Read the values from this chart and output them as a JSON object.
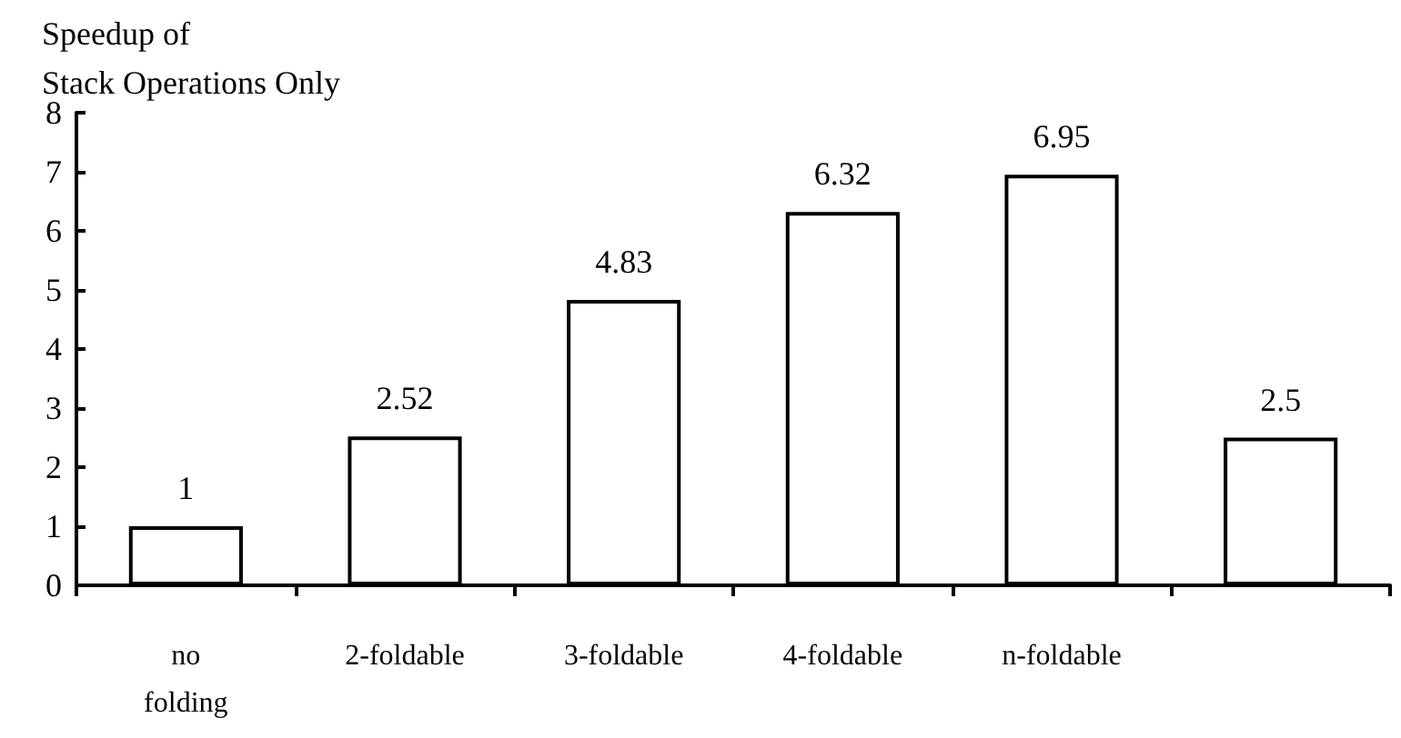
{
  "chart_data": {
    "type": "bar",
    "title": "Speedup of\nStack Operations Only",
    "categories": [
      "no\nfolding",
      "2-foldable",
      "3-foldable",
      "4-foldable",
      "n-foldable",
      null
    ],
    "values": [
      1,
      2.52,
      4.83,
      6.32,
      6.95,
      2.5
    ],
    "value_labels": [
      "1",
      "2.52",
      "4.83",
      "6.32",
      "6.95",
      "2.5"
    ],
    "color": "#ffffff",
    "ylim": [
      0,
      8
    ],
    "yticks": [
      0,
      1,
      2,
      3,
      4,
      5,
      6,
      7,
      8
    ],
    "grid": false
  }
}
